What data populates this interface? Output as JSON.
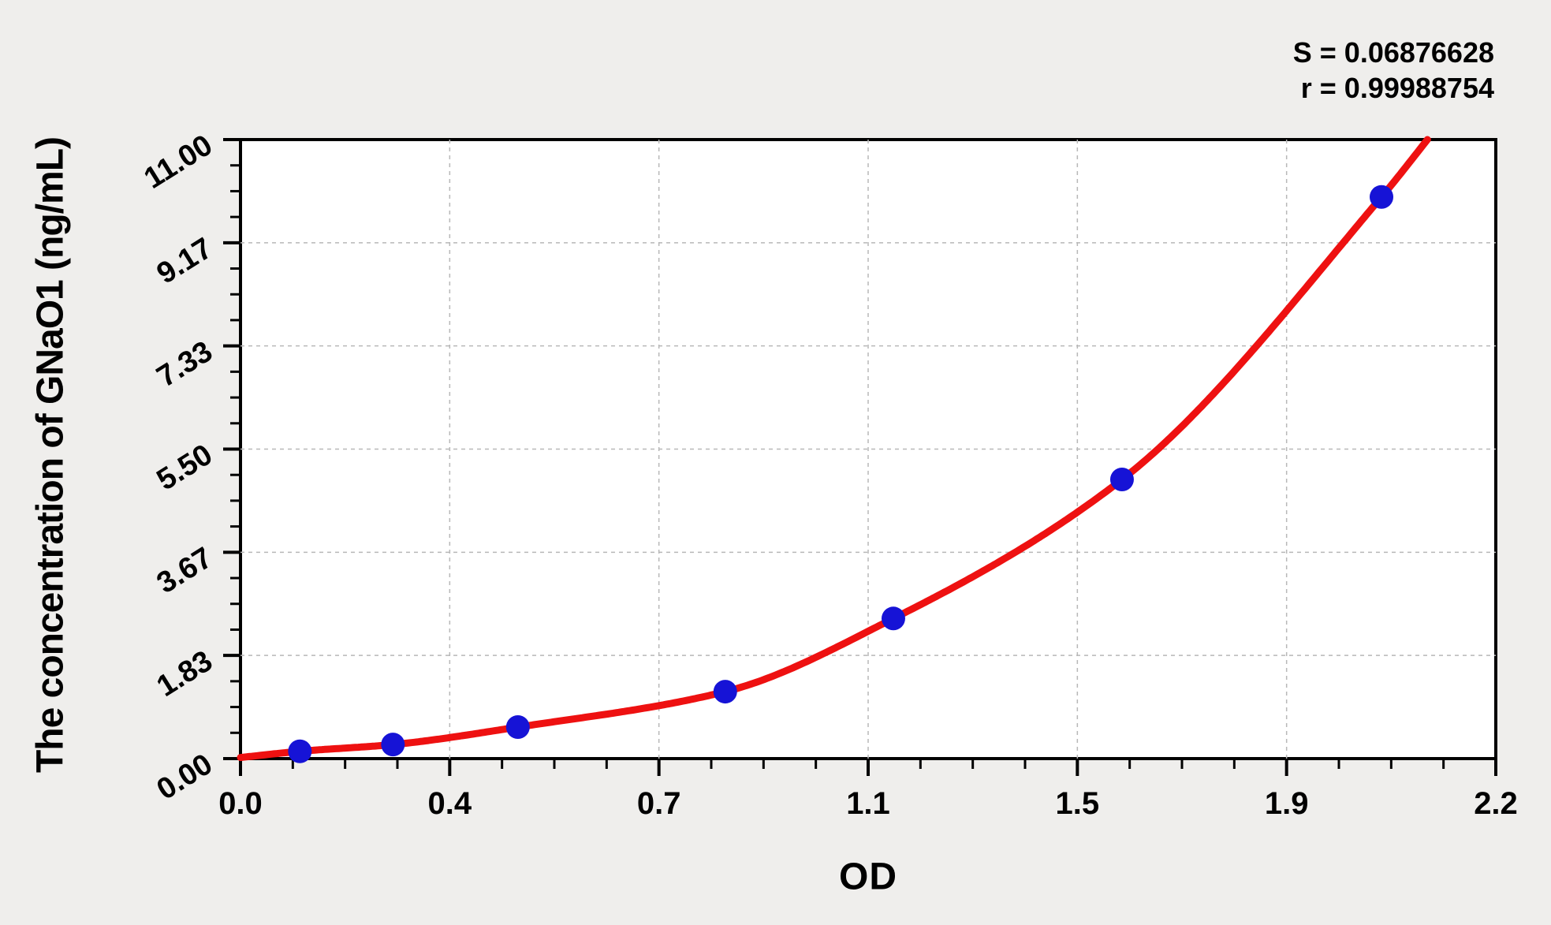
{
  "colors": {
    "background": "#efeeec",
    "plot_background": "#ffffff",
    "axis": "#000000",
    "grid": "#b8b8b8",
    "curve": "#ee1111",
    "points": "#1613d6",
    "text": "#000000"
  },
  "chart_data": {
    "type": "scatter",
    "title": "",
    "xlabel": "OD",
    "ylabel": "The concentration of GNaO1 (ng/mL)",
    "annotations": {
      "s_label": "S = 0.06876628",
      "r_label": "r = 0.99988754"
    },
    "xlim": [
      0,
      2.24
    ],
    "ylim": [
      0,
      11
    ],
    "x_tick_labels": [
      "0.0",
      "0.4",
      "0.7",
      "1.1",
      "1.5",
      "1.9",
      "2.2"
    ],
    "y_tick_labels": [
      "0.00",
      "1.83",
      "3.67",
      "5.50",
      "7.33",
      "9.17",
      "11.00"
    ],
    "minor_ticks_per_interval": 3,
    "grid": "dashed at interior major ticks, both axes",
    "legend": "none",
    "series": [
      {
        "name": "standard points",
        "type": "scatter",
        "x": [
          0.106,
          0.272,
          0.495,
          0.865,
          1.165,
          1.573,
          2.036
        ],
        "y": [
          0.13,
          0.25,
          0.56,
          1.19,
          2.49,
          4.96,
          9.98
        ],
        "color": "#1613d6"
      },
      {
        "name": "fitted curve",
        "type": "line",
        "x": [
          0,
          0.106,
          0.272,
          0.495,
          0.865,
          1.165,
          1.573,
          2.036,
          2.13
        ],
        "y": [
          0.02,
          0.13,
          0.25,
          0.56,
          1.19,
          2.49,
          4.96,
          9.98,
          11.15
        ],
        "color": "#ee1111"
      }
    ]
  }
}
